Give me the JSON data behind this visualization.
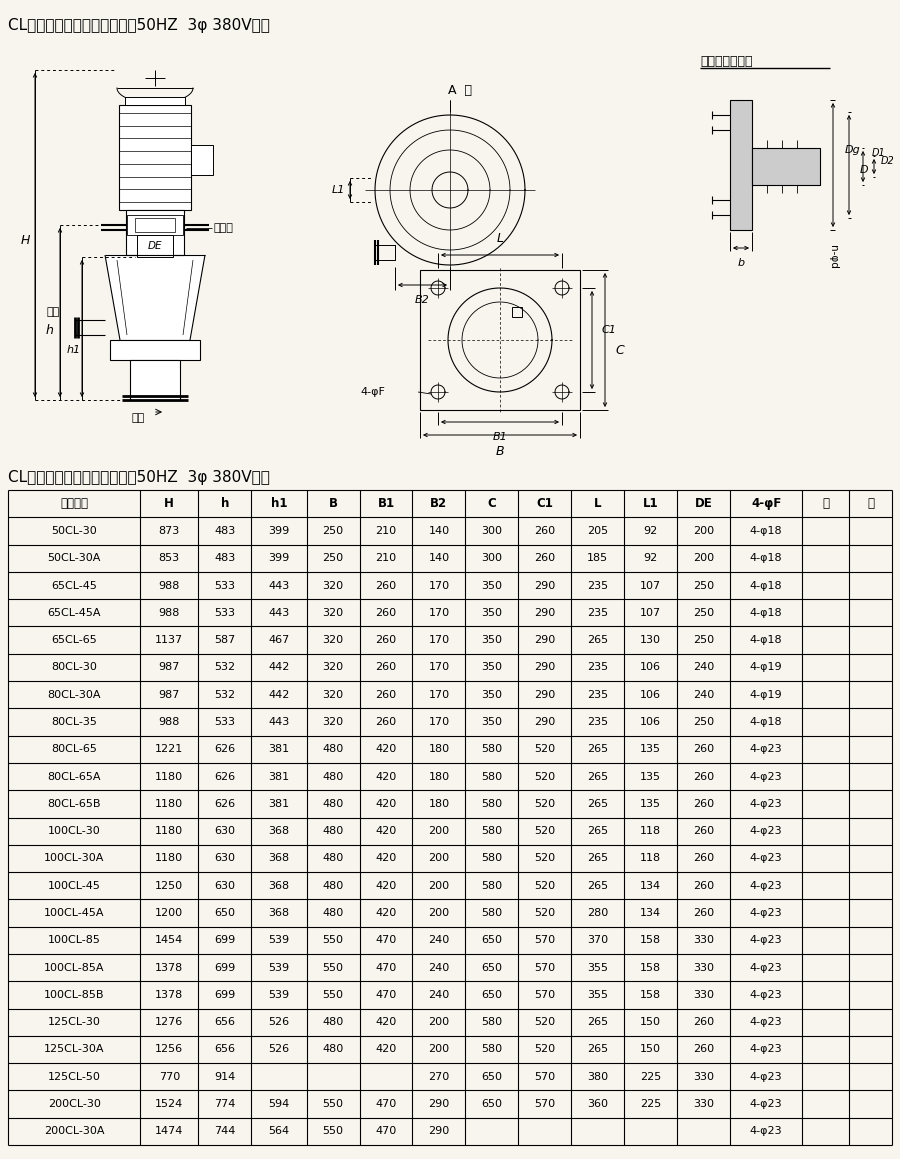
{
  "title1": "CL系列泵安装尺寸表（电源为50HZ  3φ 380V时）",
  "title2": "CL系列泵安装尺寸表（电源为50HZ  3φ 380V时）",
  "bg_color": "#f8f5ee",
  "headers": [
    "水泵型号",
    "H",
    "h",
    "h1",
    "B",
    "B1",
    "B2",
    "C",
    "C1",
    "L",
    "L1",
    "DE",
    "4-φF",
    "备",
    "注"
  ],
  "rows": [
    [
      "50CL-30",
      "873",
      "483",
      "399",
      "250",
      "210",
      "140",
      "300",
      "260",
      "205",
      "92",
      "200",
      "4-φ18",
      "",
      ""
    ],
    [
      "50CL-30A",
      "853",
      "483",
      "399",
      "250",
      "210",
      "140",
      "300",
      "260",
      "185",
      "92",
      "200",
      "4-φ18",
      "",
      ""
    ],
    [
      "65CL-45",
      "988",
      "533",
      "443",
      "320",
      "260",
      "170",
      "350",
      "290",
      "235",
      "107",
      "250",
      "4-φ18",
      "",
      ""
    ],
    [
      "65CL-45A",
      "988",
      "533",
      "443",
      "320",
      "260",
      "170",
      "350",
      "290",
      "235",
      "107",
      "250",
      "4-φ18",
      "",
      ""
    ],
    [
      "65CL-65",
      "1137",
      "587",
      "467",
      "320",
      "260",
      "170",
      "350",
      "290",
      "265",
      "130",
      "250",
      "4-φ18",
      "",
      ""
    ],
    [
      "80CL-30",
      "987",
      "532",
      "442",
      "320",
      "260",
      "170",
      "350",
      "290",
      "235",
      "106",
      "240",
      "4-φ19",
      "",
      ""
    ],
    [
      "80CL-30A",
      "987",
      "532",
      "442",
      "320",
      "260",
      "170",
      "350",
      "290",
      "235",
      "106",
      "240",
      "4-φ19",
      "",
      ""
    ],
    [
      "80CL-35",
      "988",
      "533",
      "443",
      "320",
      "260",
      "170",
      "350",
      "290",
      "235",
      "106",
      "250",
      "4-φ18",
      "",
      ""
    ],
    [
      "80CL-65",
      "1221",
      "626",
      "381",
      "480",
      "420",
      "180",
      "580",
      "520",
      "265",
      "135",
      "260",
      "4-φ23",
      "",
      ""
    ],
    [
      "80CL-65A",
      "1180",
      "626",
      "381",
      "480",
      "420",
      "180",
      "580",
      "520",
      "265",
      "135",
      "260",
      "4-φ23",
      "",
      ""
    ],
    [
      "80CL-65B",
      "1180",
      "626",
      "381",
      "480",
      "420",
      "180",
      "580",
      "520",
      "265",
      "135",
      "260",
      "4-φ23",
      "",
      ""
    ],
    [
      "100CL-30",
      "1180",
      "630",
      "368",
      "480",
      "420",
      "200",
      "580",
      "520",
      "265",
      "118",
      "260",
      "4-φ23",
      "",
      ""
    ],
    [
      "100CL-30A",
      "1180",
      "630",
      "368",
      "480",
      "420",
      "200",
      "580",
      "520",
      "265",
      "118",
      "260",
      "4-φ23",
      "",
      ""
    ],
    [
      "100CL-45",
      "1250",
      "630",
      "368",
      "480",
      "420",
      "200",
      "580",
      "520",
      "265",
      "134",
      "260",
      "4-φ23",
      "",
      ""
    ],
    [
      "100CL-45A",
      "1200",
      "650",
      "368",
      "480",
      "420",
      "200",
      "580",
      "520",
      "280",
      "134",
      "260",
      "4-φ23",
      "",
      ""
    ],
    [
      "100CL-85",
      "1454",
      "699",
      "539",
      "550",
      "470",
      "240",
      "650",
      "570",
      "370",
      "158",
      "330",
      "4-φ23",
      "",
      ""
    ],
    [
      "100CL-85A",
      "1378",
      "699",
      "539",
      "550",
      "470",
      "240",
      "650",
      "570",
      "355",
      "158",
      "330",
      "4-φ23",
      "",
      ""
    ],
    [
      "100CL-85B",
      "1378",
      "699",
      "539",
      "550",
      "470",
      "240",
      "650",
      "570",
      "355",
      "158",
      "330",
      "4-φ23",
      "",
      ""
    ],
    [
      "125CL-30",
      "1276",
      "656",
      "526",
      "480",
      "420",
      "200",
      "580",
      "520",
      "265",
      "150",
      "260",
      "4-φ23",
      "",
      ""
    ],
    [
      "125CL-30A",
      "1256",
      "656",
      "526",
      "480",
      "420",
      "200",
      "580",
      "520",
      "265",
      "150",
      "260",
      "4-φ23",
      "",
      ""
    ],
    [
      "125CL-50",
      "770",
      "914",
      "",
      "",
      "",
      "270",
      "650",
      "570",
      "380",
      "225",
      "330",
      "4-φ23",
      "",
      ""
    ],
    [
      "200CL-30",
      "1524",
      "774",
      "594",
      "550",
      "470",
      "290",
      "650",
      "570",
      "360",
      "225",
      "330",
      "4-φ23",
      "",
      ""
    ],
    [
      "200CL-30A",
      "1474",
      "744",
      "564",
      "550",
      "470",
      "290",
      "",
      "",
      "",
      "",
      "",
      "4-φ23",
      "",
      ""
    ]
  ],
  "col_widths": [
    1.55,
    0.68,
    0.62,
    0.65,
    0.62,
    0.62,
    0.62,
    0.62,
    0.62,
    0.62,
    0.62,
    0.62,
    0.85,
    0.55,
    0.5
  ],
  "header_fontsize": 8.5,
  "cell_fontsize": 8.0
}
